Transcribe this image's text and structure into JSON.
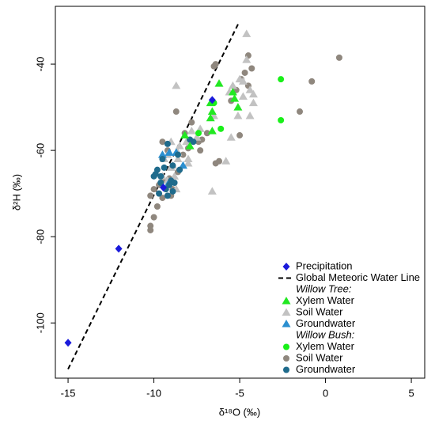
{
  "chart_data": {
    "type": "scatter",
    "xlabel": "δ¹⁸O (‰)",
    "ylabel": "δ²H (‰)",
    "xlim": [
      -15.74,
      5.78
    ],
    "ylim": [
      -112.8,
      -26.6
    ],
    "xticks": [
      -15,
      -10,
      -5,
      0,
      5
    ],
    "yticks": [
      -100,
      -80,
      -60,
      -40
    ],
    "legend_headings": [
      "Willow Tree:",
      "Willow Bush:"
    ],
    "series": [
      {
        "name": "Global Meteoric Water Line",
        "kind": "line",
        "dash": true,
        "color": "#000000",
        "x": [
          -15,
          -5.04
        ],
        "values": [
          -110.7,
          -30.3
        ]
      },
      {
        "name": "Soil Water",
        "kind": "scatter",
        "marker": "circle",
        "color": "#8f877e",
        "x": [
          0.8,
          -0.8,
          -1.5,
          -4.5,
          -4.3,
          -4.7,
          -6.4,
          -6.5,
          -4.9,
          -5.2,
          -4.5,
          -5.5,
          -7.4,
          -6.9,
          -7.2,
          -7.8,
          -8.2,
          -7.3,
          -8.0,
          -8.7,
          -6.4,
          -6.2,
          -5.0,
          -8.3,
          -9.5,
          -9.2,
          -10.2,
          -10.0,
          -9.8,
          -10.0,
          -10.2,
          -10.2,
          -9.4,
          -9.1,
          -8.9,
          -9.5,
          -9.7,
          -9.0,
          -8.6
        ],
        "values": [
          -38.5,
          -44,
          -51,
          -38,
          -41,
          -42,
          -40,
          -40.5,
          -43.5,
          -46,
          -45,
          -48.5,
          -58,
          -56,
          -57.5,
          -53.5,
          -56,
          -60,
          -59.5,
          -51,
          -63,
          -62.5,
          -56.5,
          -61,
          -58,
          -60,
          -70.5,
          -69,
          -73,
          -75.5,
          -77.5,
          -78.5,
          -67,
          -66.5,
          -69,
          -71,
          -68,
          -70.5,
          -65
        ]
      },
      {
        "name": "Soil Water",
        "kind": "scatter",
        "marker": "triangle",
        "color": "#c2c2c2",
        "x": [
          -4.6,
          -4.6,
          -5.0,
          -4.8,
          -5.4,
          -4.4,
          -4.8,
          -5.6,
          -8.7,
          -4.2,
          -5.1,
          -6.5,
          -5.5,
          -7.3,
          -7.5,
          -7.8,
          -8.1,
          -8.5,
          -9.0,
          -8.6,
          -9.2,
          -8.0,
          -8.6,
          -9.4,
          -5.8,
          -6.6,
          -8.0,
          -8.8,
          -9.0,
          -9.5,
          -8.7,
          -9.2,
          -8.9,
          -4.2,
          -4.4
        ],
        "values": [
          -33,
          -39,
          -43.5,
          -44,
          -45,
          -46,
          -47.5,
          -46.5,
          -45,
          -47,
          -52,
          -52,
          -57,
          -55,
          -57,
          -55.5,
          -58,
          -59,
          -58,
          -62,
          -61,
          -62,
          -60.5,
          -62,
          -62.5,
          -69.5,
          -63,
          -66,
          -64,
          -66,
          -69,
          -67,
          -63.5,
          -49,
          -52
        ]
      },
      {
        "name": "Groundwater",
        "kind": "scatter",
        "marker": "triangle",
        "color": "#2b8fd0",
        "x": [
          -8.7,
          -9.1,
          -8.3,
          -9.5,
          -9.2
        ],
        "values": [
          -60.5,
          -60.5,
          -63.5,
          -61,
          -68
        ]
      },
      {
        "name": "Groundwater",
        "kind": "scatter",
        "marker": "circle",
        "color": "#1f6b8c",
        "x": [
          -9.2,
          -8.6,
          -7.7,
          -7.9,
          -9.5,
          -9.6,
          -10.0,
          -9.9,
          -8.9,
          -9.4,
          -9.0,
          -9.1,
          -8.8,
          -9.3,
          -9.7,
          -9.2,
          -8.9,
          -9.6,
          -8.5,
          -9.8
        ],
        "values": [
          -58.5,
          -61,
          -58,
          -57.5,
          -62,
          -66,
          -66,
          -65.5,
          -63.5,
          -64,
          -67,
          -68,
          -67.5,
          -69,
          -70,
          -70.5,
          -69.5,
          -67.5,
          -64.5,
          -64.5
        ]
      },
      {
        "name": "Xylem Water",
        "kind": "scatter",
        "marker": "triangle",
        "color": "#22e822",
        "x": [
          -6.2,
          -5.4,
          -6.7,
          -6.6,
          -6.7,
          -5.1,
          -5.3,
          -8.2,
          -6.6,
          -7.9
        ],
        "values": [
          -44.5,
          -46.5,
          -49,
          -51,
          -52.5,
          -50,
          -48,
          -56.5,
          -55.5,
          -59
        ]
      },
      {
        "name": "Xylem Water",
        "kind": "scatter",
        "marker": "circle",
        "color": "#19f019",
        "x": [
          -2.6,
          -2.6,
          -6.1,
          -7.4,
          -6.5
        ],
        "values": [
          -43.5,
          -53,
          -55,
          -56,
          -49
        ]
      },
      {
        "name": "Precipitation",
        "kind": "scatter",
        "marker": "diamond",
        "color": "#1a1adb",
        "x": [
          -15,
          -12.05,
          -6.6,
          -9.45
        ],
        "values": [
          -104.6,
          -82.8,
          -48.3,
          -68.6
        ]
      }
    ]
  }
}
